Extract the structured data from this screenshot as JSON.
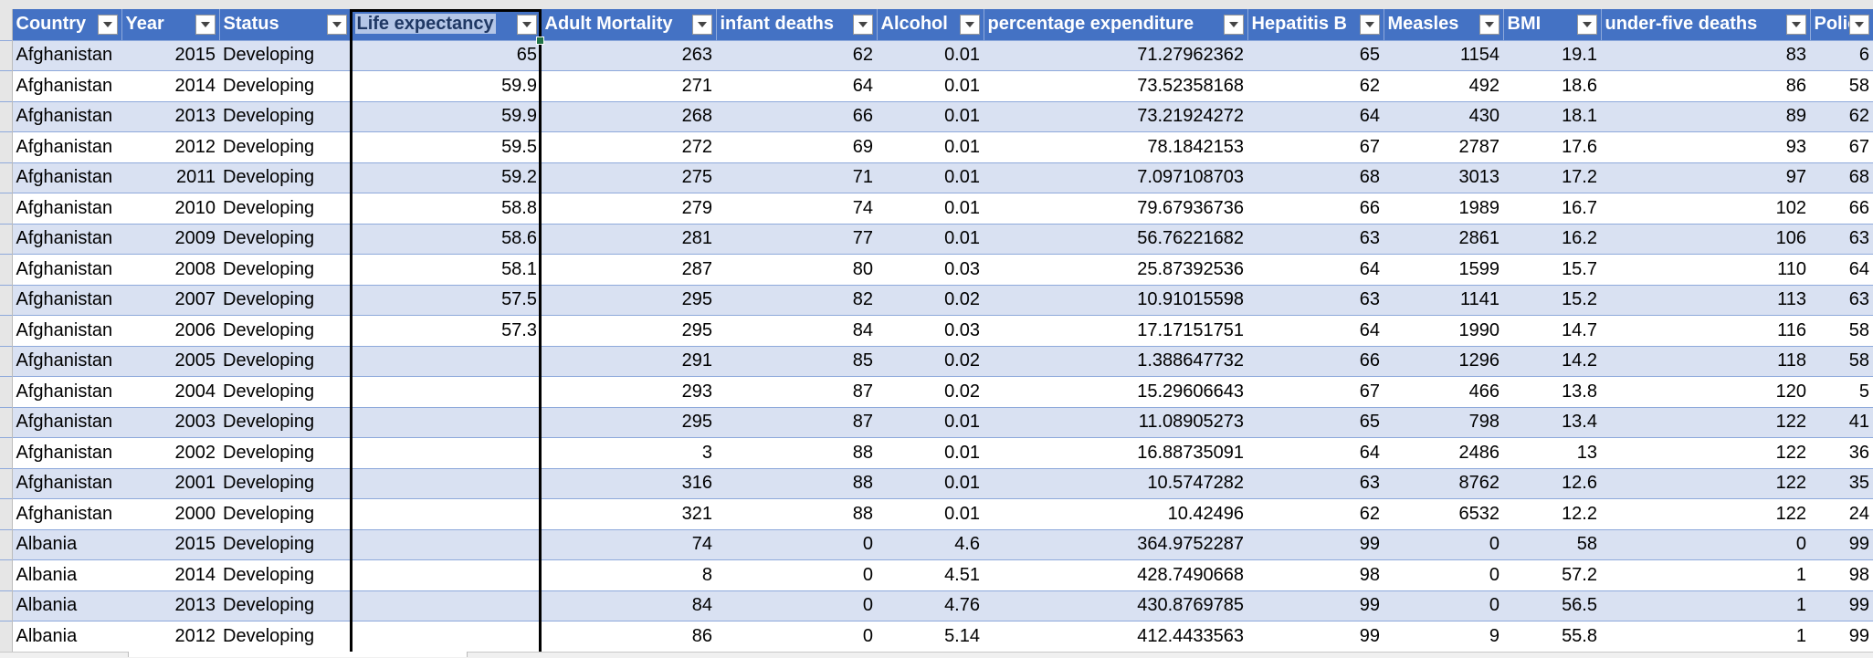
{
  "table": {
    "headers": [
      "Country",
      "Year",
      "Status",
      "Life expectancy",
      "Adult Mortality",
      "infant deaths",
      "Alcohol",
      "percentage expenditure",
      "Hepatitis B",
      "Measles",
      "BMI",
      "under-five deaths",
      "Polio"
    ],
    "rows": [
      [
        "Afghanistan",
        2015,
        "Developing",
        65,
        263,
        62,
        0.01,
        71.27962362,
        65,
        1154,
        19.1,
        83,
        6
      ],
      [
        "Afghanistan",
        2014,
        "Developing",
        59.9,
        271,
        64,
        0.01,
        73.52358168,
        62,
        492,
        18.6,
        86,
        58
      ],
      [
        "Afghanistan",
        2013,
        "Developing",
        59.9,
        268,
        66,
        0.01,
        73.21924272,
        64,
        430,
        18.1,
        89,
        62
      ],
      [
        "Afghanistan",
        2012,
        "Developing",
        59.5,
        272,
        69,
        0.01,
        78.1842153,
        67,
        2787,
        17.6,
        93,
        67
      ],
      [
        "Afghanistan",
        2011,
        "Developing",
        59.2,
        275,
        71,
        0.01,
        7.097108703,
        68,
        3013,
        17.2,
        97,
        68
      ],
      [
        "Afghanistan",
        2010,
        "Developing",
        58.8,
        279,
        74,
        0.01,
        79.67936736,
        66,
        1989,
        16.7,
        102,
        66
      ],
      [
        "Afghanistan",
        2009,
        "Developing",
        58.6,
        281,
        77,
        0.01,
        56.76221682,
        63,
        2861,
        16.2,
        106,
        63
      ],
      [
        "Afghanistan",
        2008,
        "Developing",
        58.1,
        287,
        80,
        0.03,
        25.87392536,
        64,
        1599,
        15.7,
        110,
        64
      ],
      [
        "Afghanistan",
        2007,
        "Developing",
        57.5,
        295,
        82,
        0.02,
        10.91015598,
        63,
        1141,
        15.2,
        113,
        63
      ],
      [
        "Afghanistan",
        2006,
        "Developing",
        57.3,
        295,
        84,
        0.03,
        17.17151751,
        64,
        1990,
        14.7,
        116,
        58
      ],
      [
        "Afghanistan",
        2005,
        "Developing",
        null,
        291,
        85,
        0.02,
        1.388647732,
        66,
        1296,
        14.2,
        118,
        58
      ],
      [
        "Afghanistan",
        2004,
        "Developing",
        null,
        293,
        87,
        0.02,
        15.29606643,
        67,
        466,
        13.8,
        120,
        5
      ],
      [
        "Afghanistan",
        2003,
        "Developing",
        null,
        295,
        87,
        0.01,
        11.08905273,
        65,
        798,
        13.4,
        122,
        41
      ],
      [
        "Afghanistan",
        2002,
        "Developing",
        null,
        3,
        88,
        0.01,
        16.88735091,
        64,
        2486,
        13,
        122,
        36
      ],
      [
        "Afghanistan",
        2001,
        "Developing",
        null,
        316,
        88,
        0.01,
        10.5747282,
        63,
        8762,
        12.6,
        122,
        35
      ],
      [
        "Afghanistan",
        2000,
        "Developing",
        null,
        321,
        88,
        0.01,
        10.42496,
        62,
        6532,
        12.2,
        122,
        24
      ],
      [
        "Albania",
        2015,
        "Developing",
        null,
        74,
        0,
        4.6,
        364.9752287,
        99,
        0,
        58,
        0,
        99
      ],
      [
        "Albania",
        2014,
        "Developing",
        null,
        8,
        0,
        4.51,
        428.7490668,
        98,
        0,
        57.2,
        1,
        98
      ],
      [
        "Albania",
        2013,
        "Developing",
        null,
        84,
        0,
        4.76,
        430.8769785,
        99,
        0,
        56.5,
        1,
        99
      ],
      [
        "Albania",
        2012,
        "Developing",
        null,
        86,
        0,
        5.14,
        412.4433563,
        99,
        9,
        55.8,
        1,
        99
      ]
    ]
  }
}
